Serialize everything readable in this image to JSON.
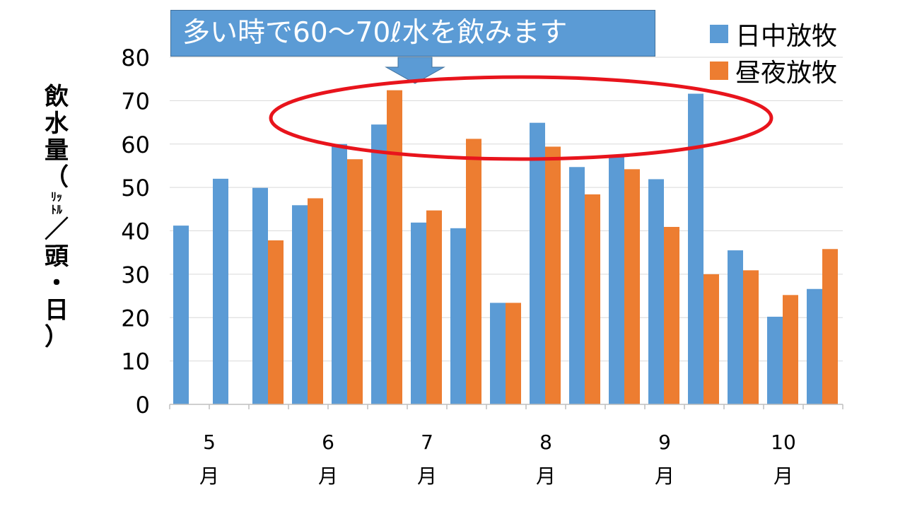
{
  "chart_data": {
    "type": "bar",
    "title": "",
    "ylabel_chars": [
      "飲",
      "水",
      "量",
      "（",
      "ﾘｯ",
      "ﾄﾙ",
      "／",
      "頭",
      "・",
      "日",
      "）"
    ],
    "ylim": [
      0,
      80
    ],
    "yticks": [
      "0",
      "10",
      "20",
      "30",
      "40",
      "50",
      "60",
      "70",
      "80"
    ],
    "grid": true,
    "legend_position": "top-right",
    "categories": [
      "5-1",
      "5-2",
      "6-1",
      "6-2",
      "6-3",
      "6-4",
      "7-1",
      "7-2",
      "7-3",
      "8-1",
      "8-2",
      "8-3",
      "9-1",
      "9-2",
      "9-3",
      "10-1",
      "10-2"
    ],
    "month_labels": [
      {
        "num": "5",
        "unit": "月",
        "start": 0,
        "end": 1
      },
      {
        "num": "6",
        "unit": "月",
        "start": 2,
        "end": 5
      },
      {
        "num": "7",
        "unit": "月",
        "start": 5,
        "end": 7
      },
      {
        "num": "8",
        "unit": "月",
        "start": 8,
        "end": 10
      },
      {
        "num": "9",
        "unit": "月",
        "start": 11,
        "end": 13
      },
      {
        "num": "10",
        "unit": "月",
        "start": 14,
        "end": 16
      }
    ],
    "series": [
      {
        "name": "日中放牧",
        "color": "#5b9bd5",
        "values": [
          41.2,
          52.0,
          49.9,
          45.9,
          60.0,
          64.5,
          41.9,
          40.6,
          23.4,
          64.9,
          54.7,
          57.4,
          51.9,
          71.6,
          35.5,
          20.2,
          26.6
        ]
      },
      {
        "name": "昼夜放牧",
        "color": "#ed7d31",
        "values": [
          null,
          null,
          37.8,
          47.5,
          56.5,
          72.4,
          44.7,
          61.2,
          23.4,
          59.4,
          48.4,
          54.2,
          40.9,
          30.0,
          30.9,
          25.2,
          35.8
        ]
      }
    ],
    "annotation": {
      "text": "多い時で60～70ℓ水を飲みます",
      "color": "#5b9bd5",
      "highlight_color": "#e8141c"
    }
  }
}
